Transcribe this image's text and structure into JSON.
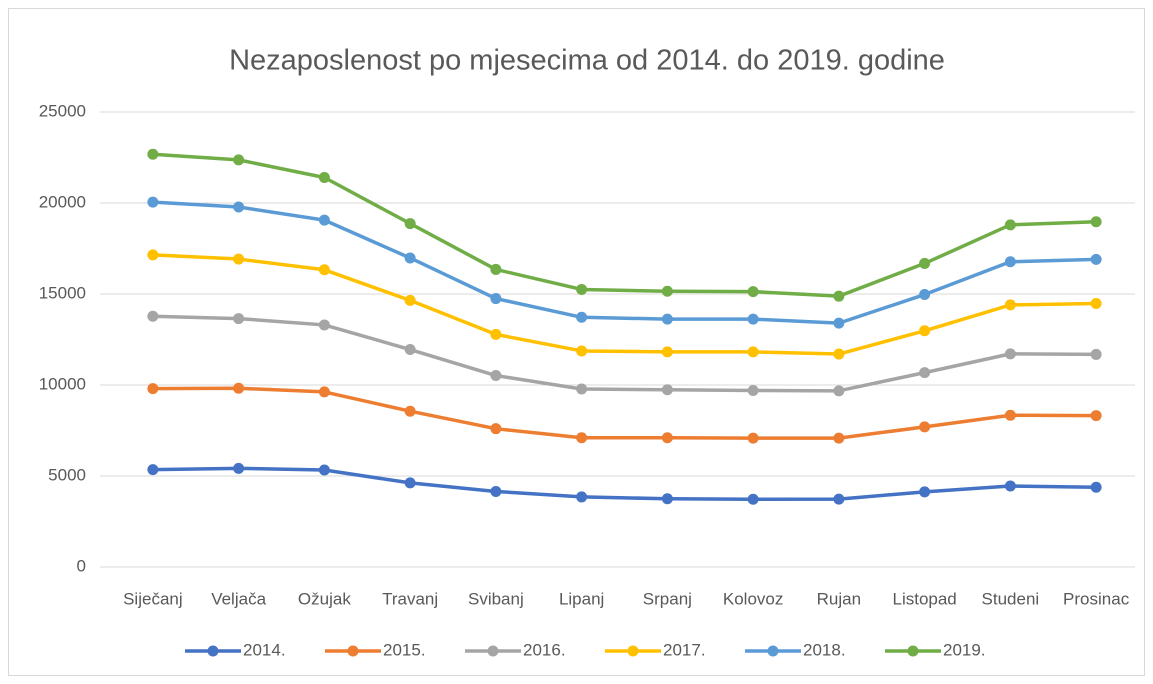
{
  "chart_data": {
    "type": "line",
    "stacked": true,
    "title": "Nezaposlenost po mjesecima od 2014. do 2019. godine",
    "categories": [
      "Siječanj",
      "Veljača",
      "Ožujak",
      "Travanj",
      "Svibanj",
      "Lipanj",
      "Srpanj",
      "Kolovoz",
      "Rujan",
      "Listopad",
      "Studeni",
      "Prosinac"
    ],
    "series": [
      {
        "name": "2014.",
        "color": "#4472c4",
        "values": [
          5350,
          5420,
          5330,
          4620,
          4150,
          3850,
          3750,
          3720,
          3730,
          4130,
          4450,
          4380
        ]
      },
      {
        "name": "2015.",
        "color": "#ed7d31",
        "values": [
          4450,
          4400,
          4290,
          3940,
          3450,
          3250,
          3350,
          3360,
          3350,
          3570,
          3890,
          3940
        ]
      },
      {
        "name": "2016.",
        "color": "#a5a5a5",
        "values": [
          3980,
          3830,
          3680,
          3390,
          2920,
          2680,
          2640,
          2620,
          2600,
          2980,
          3370,
          3360
        ]
      },
      {
        "name": "2017.",
        "color": "#ffc000",
        "values": [
          3370,
          3270,
          3030,
          2700,
          2260,
          2090,
          2080,
          2120,
          2020,
          2300,
          2690,
          2800
        ]
      },
      {
        "name": "2018.",
        "color": "#5b9bd5",
        "values": [
          2900,
          2860,
          2730,
          2330,
          1970,
          1850,
          1800,
          1800,
          1700,
          1990,
          2370,
          2420
        ]
      },
      {
        "name": "2019.",
        "color": "#70ad47",
        "values": [
          2630,
          2590,
          2340,
          1890,
          1600,
          1530,
          1530,
          1510,
          1480,
          1710,
          2030,
          2070
        ]
      }
    ],
    "ylim": [
      0,
      25000
    ],
    "yticks": [
      0,
      5000,
      10000,
      15000,
      20000,
      25000
    ],
    "grid": true,
    "legend": "bottom"
  }
}
